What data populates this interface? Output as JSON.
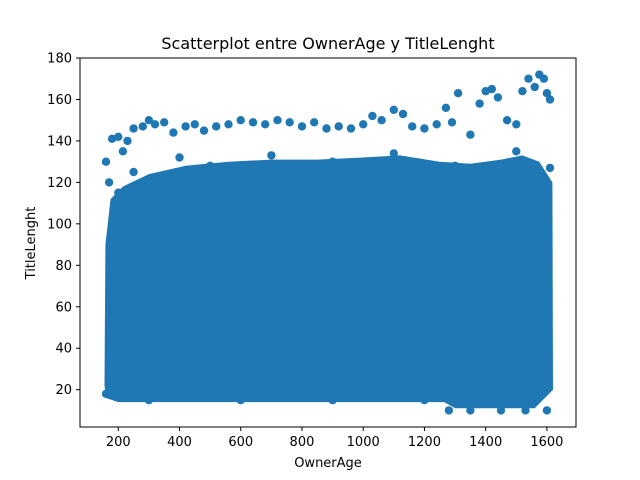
{
  "chart_data": {
    "type": "scatter",
    "title": "Scatterplot entre OwnerAge y TitleLenght",
    "xlabel": "OwnerAge",
    "ylabel": "TitleLenght",
    "xlim": [
      75,
      1695
    ],
    "ylim": [
      2,
      180
    ],
    "x_ticks": [
      200,
      400,
      600,
      800,
      1000,
      1200,
      1400,
      1600
    ],
    "y_ticks": [
      20,
      40,
      60,
      80,
      100,
      120,
      140,
      160,
      180
    ],
    "grid": false,
    "color": "#1f77b4",
    "series": [
      {
        "points": [
          [
            160,
            130
          ],
          [
            180,
            141
          ],
          [
            200,
            142
          ],
          [
            215,
            135
          ],
          [
            230,
            140
          ],
          [
            250,
            146
          ],
          [
            280,
            147
          ],
          [
            300,
            150
          ],
          [
            320,
            148
          ],
          [
            350,
            149
          ],
          [
            380,
            144
          ],
          [
            420,
            147
          ],
          [
            450,
            148
          ],
          [
            480,
            145
          ],
          [
            520,
            147
          ],
          [
            560,
            148
          ],
          [
            600,
            150
          ],
          [
            640,
            149
          ],
          [
            680,
            148
          ],
          [
            720,
            150
          ],
          [
            760,
            149
          ],
          [
            800,
            147
          ],
          [
            840,
            149
          ],
          [
            880,
            146
          ],
          [
            920,
            147
          ],
          [
            960,
            146
          ],
          [
            1000,
            148
          ],
          [
            1030,
            152
          ],
          [
            1060,
            150
          ],
          [
            1100,
            155
          ],
          [
            1130,
            153
          ],
          [
            1160,
            147
          ],
          [
            1200,
            146
          ],
          [
            1240,
            148
          ],
          [
            1270,
            156
          ],
          [
            1290,
            149
          ],
          [
            1310,
            163
          ],
          [
            1350,
            143
          ],
          [
            1380,
            158
          ],
          [
            1400,
            164
          ],
          [
            1420,
            165
          ],
          [
            1440,
            161
          ],
          [
            1470,
            150
          ],
          [
            1500,
            148
          ],
          [
            1520,
            164
          ],
          [
            1540,
            170
          ],
          [
            1560,
            166
          ],
          [
            1575,
            172
          ],
          [
            1590,
            170
          ],
          [
            1600,
            163
          ],
          [
            1610,
            160
          ],
          [
            170,
            120
          ],
          [
            200,
            115
          ],
          [
            250,
            125
          ],
          [
            400,
            132
          ],
          [
            500,
            128
          ],
          [
            700,
            133
          ],
          [
            900,
            130
          ],
          [
            1100,
            134
          ],
          [
            1300,
            128
          ],
          [
            1500,
            135
          ],
          [
            1610,
            127
          ],
          [
            160,
            18
          ],
          [
            300,
            15
          ],
          [
            600,
            15
          ],
          [
            900,
            15
          ],
          [
            1200,
            15
          ],
          [
            1280,
            10
          ],
          [
            1350,
            10
          ],
          [
            1450,
            10
          ],
          [
            1530,
            10
          ],
          [
            1600,
            10
          ]
        ]
      }
    ]
  }
}
